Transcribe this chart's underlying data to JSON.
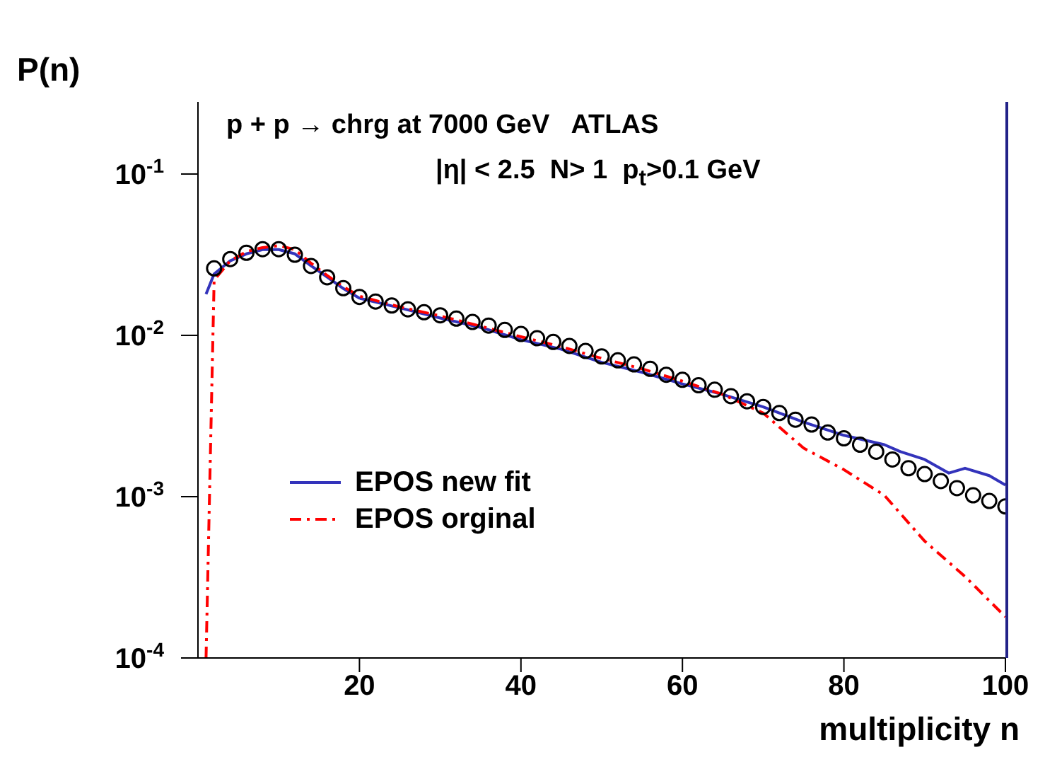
{
  "chart_data": {
    "type": "scatter",
    "title": "p + p → chrg at 7000 GeV   ATLAS",
    "subtitle": "|η| < 2.5  N> 1  p$_{t}$>0.1 GeV",
    "xlabel": "multiplicity n",
    "ylabel": "P(n)",
    "xlim": [
      0,
      100
    ],
    "xticks": [
      20,
      40,
      60,
      80,
      100
    ],
    "ylim": [
      0.0001,
      0.28
    ],
    "yticks": [
      {
        "value": 0.0001,
        "label": "10$^{-4}$"
      },
      {
        "value": 0.001,
        "label": "10$^{-3}$"
      },
      {
        "value": 0.01,
        "label": "10$^{-2}$"
      },
      {
        "value": 0.1,
        "label": "10$^{-1}$"
      }
    ],
    "log": "y",
    "legend": "bottom left",
    "series": [
      {
        "color": "#000000",
        "marker": "circle",
        "x": [
          2,
          4,
          6,
          8,
          10,
          12,
          14,
          16,
          18,
          20,
          22,
          24,
          26,
          28,
          30,
          32,
          34,
          36,
          38,
          40,
          42,
          44,
          46,
          48,
          50,
          52,
          54,
          56,
          58,
          60,
          62,
          64,
          66,
          68,
          70,
          72,
          74,
          76,
          78,
          80,
          82,
          84,
          86,
          88,
          90,
          92,
          94,
          96,
          98,
          100
        ],
        "values": [
          0.026,
          0.0297,
          0.0325,
          0.0342,
          0.0342,
          0.0316,
          0.0269,
          0.0229,
          0.0196,
          0.0173,
          0.0162,
          0.0153,
          0.0145,
          0.0139,
          0.0133,
          0.0127,
          0.0121,
          0.0115,
          0.0108,
          0.0102,
          0.0096,
          0.0091,
          0.0086,
          0.008,
          0.0074,
          0.007,
          0.0066,
          0.0062,
          0.0057,
          0.0053,
          0.0049,
          0.0046,
          0.0042,
          0.0039,
          0.0036,
          0.0033,
          0.003,
          0.0028,
          0.0025,
          0.0023,
          0.0021,
          0.0019,
          0.0017,
          0.0015,
          0.00138,
          0.00125,
          0.00113,
          0.00102,
          0.00094,
          0.00087
        ]
      },
      {
        "type": "line",
        "name": "EPOS new fit",
        "color": "#3333bb",
        "line_style": "solid",
        "x": [
          1,
          2,
          4,
          6,
          8,
          10,
          12,
          14,
          16,
          18,
          20,
          25,
          30,
          35,
          40,
          45,
          50,
          55,
          60,
          65,
          70,
          75,
          80,
          85,
          87,
          90,
          93,
          95,
          98,
          100
        ],
        "values": [
          0.018,
          0.024,
          0.029,
          0.032,
          0.034,
          0.034,
          0.032,
          0.027,
          0.023,
          0.0195,
          0.017,
          0.0148,
          0.0128,
          0.0112,
          0.0094,
          0.0082,
          0.0068,
          0.0059,
          0.005,
          0.0043,
          0.0036,
          0.0029,
          0.0024,
          0.0021,
          0.0019,
          0.0017,
          0.0014,
          0.0015,
          0.00135,
          0.00118
        ]
      },
      {
        "type": "line",
        "name": "EPOS orginal",
        "color": "#ff0000",
        "line_style": "dashed",
        "x": [
          1,
          2,
          4,
          6,
          8,
          10,
          12,
          14,
          16,
          18,
          20,
          25,
          30,
          35,
          40,
          45,
          50,
          55,
          60,
          65,
          70,
          75,
          80,
          85,
          90,
          95,
          100
        ],
        "values": [
          0.0001,
          0.022,
          0.029,
          0.033,
          0.035,
          0.036,
          0.034,
          0.028,
          0.0235,
          0.02,
          0.0175,
          0.015,
          0.0132,
          0.0114,
          0.0098,
          0.0085,
          0.0072,
          0.0062,
          0.0052,
          0.0043,
          0.0033,
          0.002,
          0.00147,
          0.00102,
          0.00053,
          0.00032,
          0.00018
        ]
      }
    ]
  }
}
